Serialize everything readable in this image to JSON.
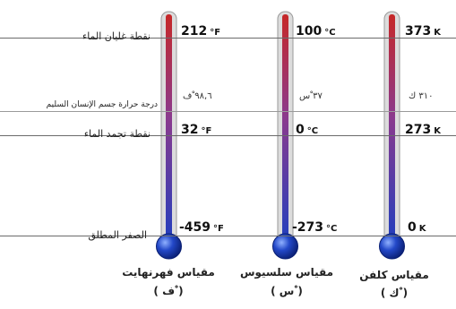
{
  "labels": {
    "boiling": "نقطة غليان الماء",
    "body": "درجة حرارة جسم الإنسان السليم",
    "freezing": "نقطة تجمد الماء",
    "absolute_zero": "الصفر المطلق"
  },
  "fahrenheit": {
    "name": "مقياس فهرنهايت",
    "symbol": "( ْف )",
    "boiling": "212",
    "boiling_unit": "°F",
    "body": "٩٨,٦ ْف",
    "freezing": "32",
    "freezing_unit": "°F",
    "zero": "-459",
    "zero_unit": "°F"
  },
  "celsius": {
    "name": "مقياس سلسيوس",
    "symbol": "( ْس )",
    "boiling": "100",
    "boiling_unit": "°C",
    "body": "٣٧ ْس",
    "freezing": "0",
    "freezing_unit": "°C",
    "zero": "-273",
    "zero_unit": "°C"
  },
  "kelvin": {
    "name": "مقياس كلفن",
    "symbol": "( ْك )",
    "boiling": "373",
    "boiling_unit": "K",
    "body": "٣١٠ ك",
    "freezing": "273",
    "freezing_unit": "K",
    "zero": "0",
    "zero_unit": "K"
  },
  "colors": {
    "hot": "#c62828",
    "cold": "#1f3fbf",
    "bulb": "#1a3fb0"
  }
}
